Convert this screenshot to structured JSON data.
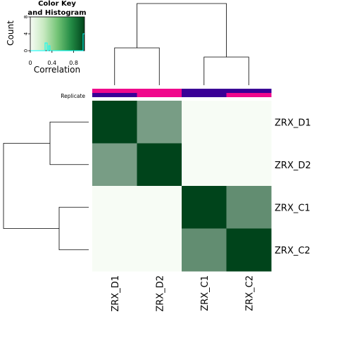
{
  "chart_data": {
    "type": "heatmap",
    "rows": [
      "ZRX_D1",
      "ZRX_D2",
      "ZRX_C1",
      "ZRX_C2"
    ],
    "columns": [
      "ZRX_D1",
      "ZRX_D2",
      "ZRX_C1",
      "ZRX_C2"
    ],
    "values": [
      [
        1.0,
        0.3,
        0.0,
        0.0
      ],
      [
        0.3,
        1.0,
        0.0,
        0.0
      ],
      [
        0.0,
        0.0,
        1.0,
        0.4
      ],
      [
        0.0,
        0.0,
        0.4,
        1.0
      ]
    ],
    "color_scale": {
      "low": "#f7fcf5",
      "high": "#00441b",
      "range": [
        0,
        1
      ]
    },
    "annotation": {
      "label": "Replicate",
      "top_colors": [
        "#f0088c",
        "#f0088c",
        "#3a0096",
        "#3a0096"
      ],
      "bottom_colors": [
        "#3a0096",
        "#f0088c",
        "#3a0096",
        "#f0088c"
      ]
    },
    "dendrogram": {
      "pairs": [
        [
          "ZRX_D1",
          "ZRX_D2"
        ],
        [
          "ZRX_C1",
          "ZRX_C2"
        ]
      ]
    },
    "color_key": {
      "title_line1": "Color Key",
      "title_line2": "and Histogram",
      "ylabel": "Count",
      "xlabel": "Correlation",
      "x_ticks": [
        "0",
        "0.4",
        "0.8"
      ],
      "y_ticks": [
        "0",
        "4",
        "8"
      ],
      "histogram_color": "#00ffff"
    }
  }
}
